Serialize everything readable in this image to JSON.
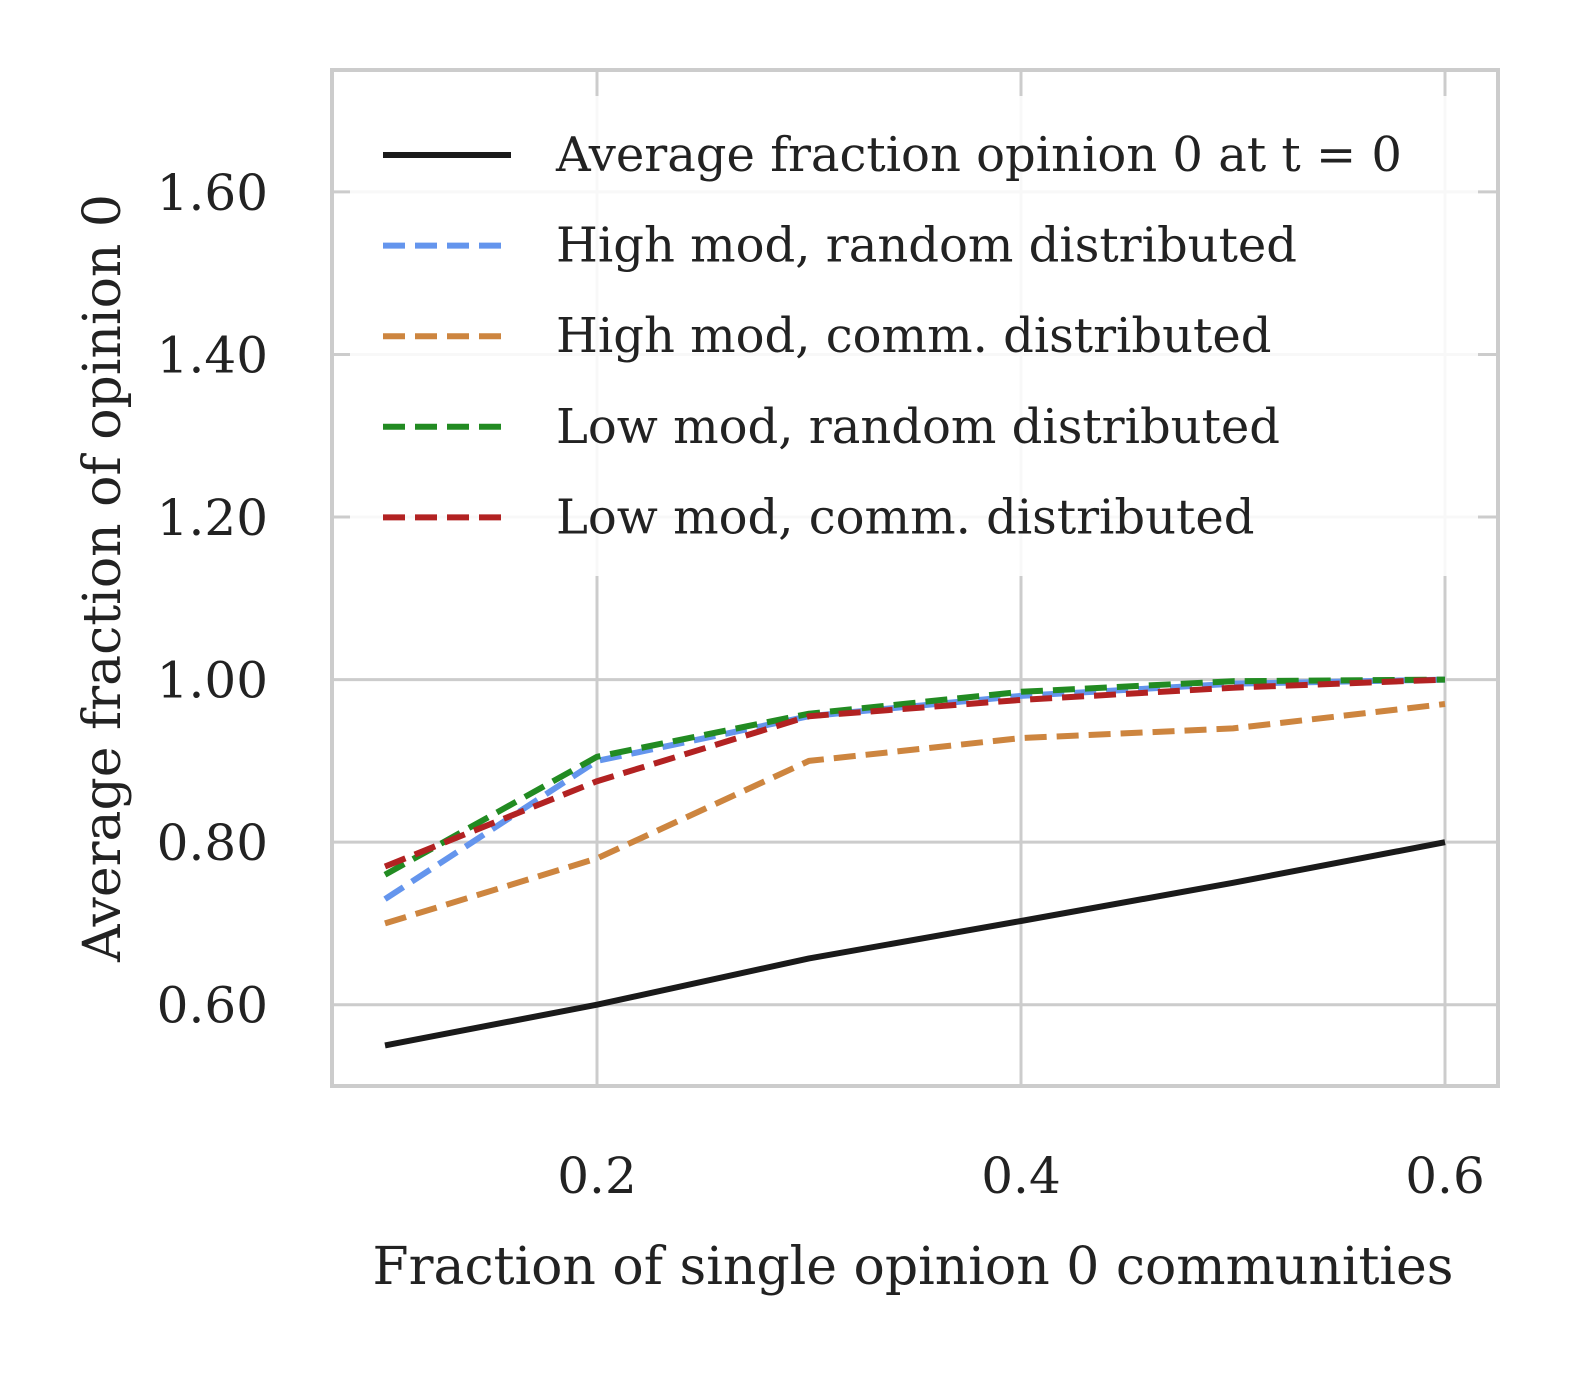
{
  "chart_data": {
    "type": "line",
    "xlabel": "Fraction of single opinion 0 communities",
    "ylabel": "Average fraction of opinion 0",
    "xlim": [
      0.075,
      0.625
    ],
    "ylim": [
      0.5,
      1.75
    ],
    "xticks": [
      0.2,
      0.4,
      0.6
    ],
    "xtick_labels": [
      "0.2",
      "0.4",
      "0.6"
    ],
    "yticks": [
      0.6,
      0.8,
      1.0,
      1.2,
      1.4,
      1.6
    ],
    "ytick_labels": [
      "0.60",
      "0.80",
      "1.00",
      "1.20",
      "1.40",
      "1.60"
    ],
    "grid": true,
    "legend_position": "top",
    "series": [
      {
        "name": "Average fraction opinion 0 at t = 0",
        "color": "#1a1a1a",
        "dashed": false,
        "x": [
          0.1,
          0.2,
          0.3,
          0.4,
          0.5,
          0.6
        ],
        "y": [
          0.55,
          0.6,
          0.657,
          0.703,
          0.75,
          0.8
        ]
      },
      {
        "name": "High mod, random distributed",
        "color": "#6495ed",
        "dashed": true,
        "x": [
          0.1,
          0.2,
          0.3,
          0.4,
          0.5,
          0.6
        ],
        "y": [
          0.73,
          0.9,
          0.955,
          0.98,
          0.995,
          1.0
        ]
      },
      {
        "name": "High mod, comm. distributed",
        "color": "#cd853f",
        "dashed": true,
        "x": [
          0.1,
          0.2,
          0.3,
          0.4,
          0.5,
          0.6
        ],
        "y": [
          0.7,
          0.78,
          0.9,
          0.928,
          0.94,
          0.97
        ]
      },
      {
        "name": "Low mod, random distributed",
        "color": "#228b22",
        "dashed": true,
        "x": [
          0.1,
          0.2,
          0.3,
          0.4,
          0.5,
          0.6
        ],
        "y": [
          0.76,
          0.905,
          0.958,
          0.985,
          0.998,
          1.0
        ]
      },
      {
        "name": "Low mod, comm. distributed",
        "color": "#b22222",
        "dashed": true,
        "x": [
          0.1,
          0.2,
          0.3,
          0.4,
          0.5,
          0.6
        ],
        "y": [
          0.77,
          0.875,
          0.955,
          0.975,
          0.99,
          1.0
        ]
      }
    ]
  }
}
